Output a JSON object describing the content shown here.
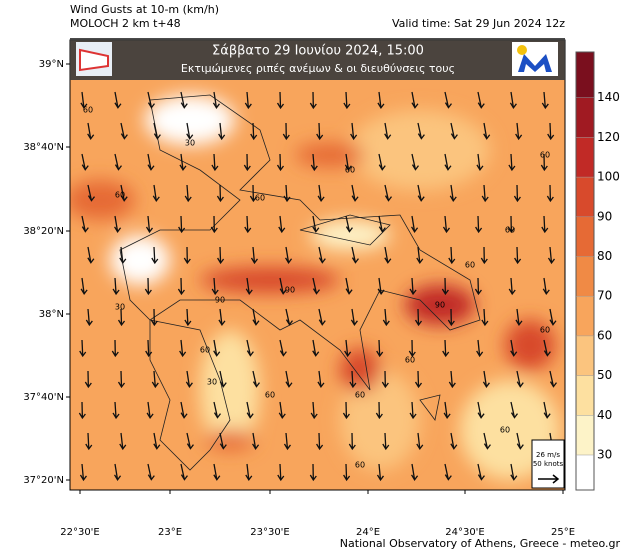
{
  "header": {
    "title": "Wind Gusts at 10-m (km/h)",
    "model": "MOLOCH 2 km t+48",
    "valid_time": "Valid time: Sat 29 Jun 2024 12z"
  },
  "banner": {
    "date": "Σάββατο  29 Ιουνίου 2024, 15:00",
    "subtitle": "Εκτιμώμενες ριπές ανέμων & οι διευθύνσεις τους"
  },
  "map": {
    "lat_labels": [
      "39°N",
      "38°40'N",
      "38°20'N",
      "38°N",
      "37°40'N",
      "37°20'N"
    ],
    "lon_labels": [
      "22°30'E",
      "23°E",
      "23°30'E",
      "24°E",
      "24°30'E",
      "25°E"
    ],
    "contour_labels": [
      "60",
      "30",
      "60",
      "60",
      "90",
      "60",
      "90",
      "60",
      "60",
      "60",
      "30",
      "60",
      "60",
      "30",
      "90",
      "60",
      "60",
      "60",
      "60",
      "60"
    ],
    "reference_arrow": {
      "speed": "26 m/s",
      "knots": "50 knots"
    }
  },
  "colorbar": {
    "ticks": [
      30,
      40,
      50,
      60,
      70,
      80,
      90,
      100,
      120,
      140
    ],
    "colors": [
      "#ffffff",
      "#fdf3c8",
      "#fde0a0",
      "#fbc47e",
      "#f8a55c",
      "#f08a45",
      "#e66a35",
      "#d84a2c",
      "#c12a26",
      "#a01a22",
      "#7a0f1e"
    ]
  },
  "footer": "National Observatory of Athens, Greece - meteo.gr"
}
